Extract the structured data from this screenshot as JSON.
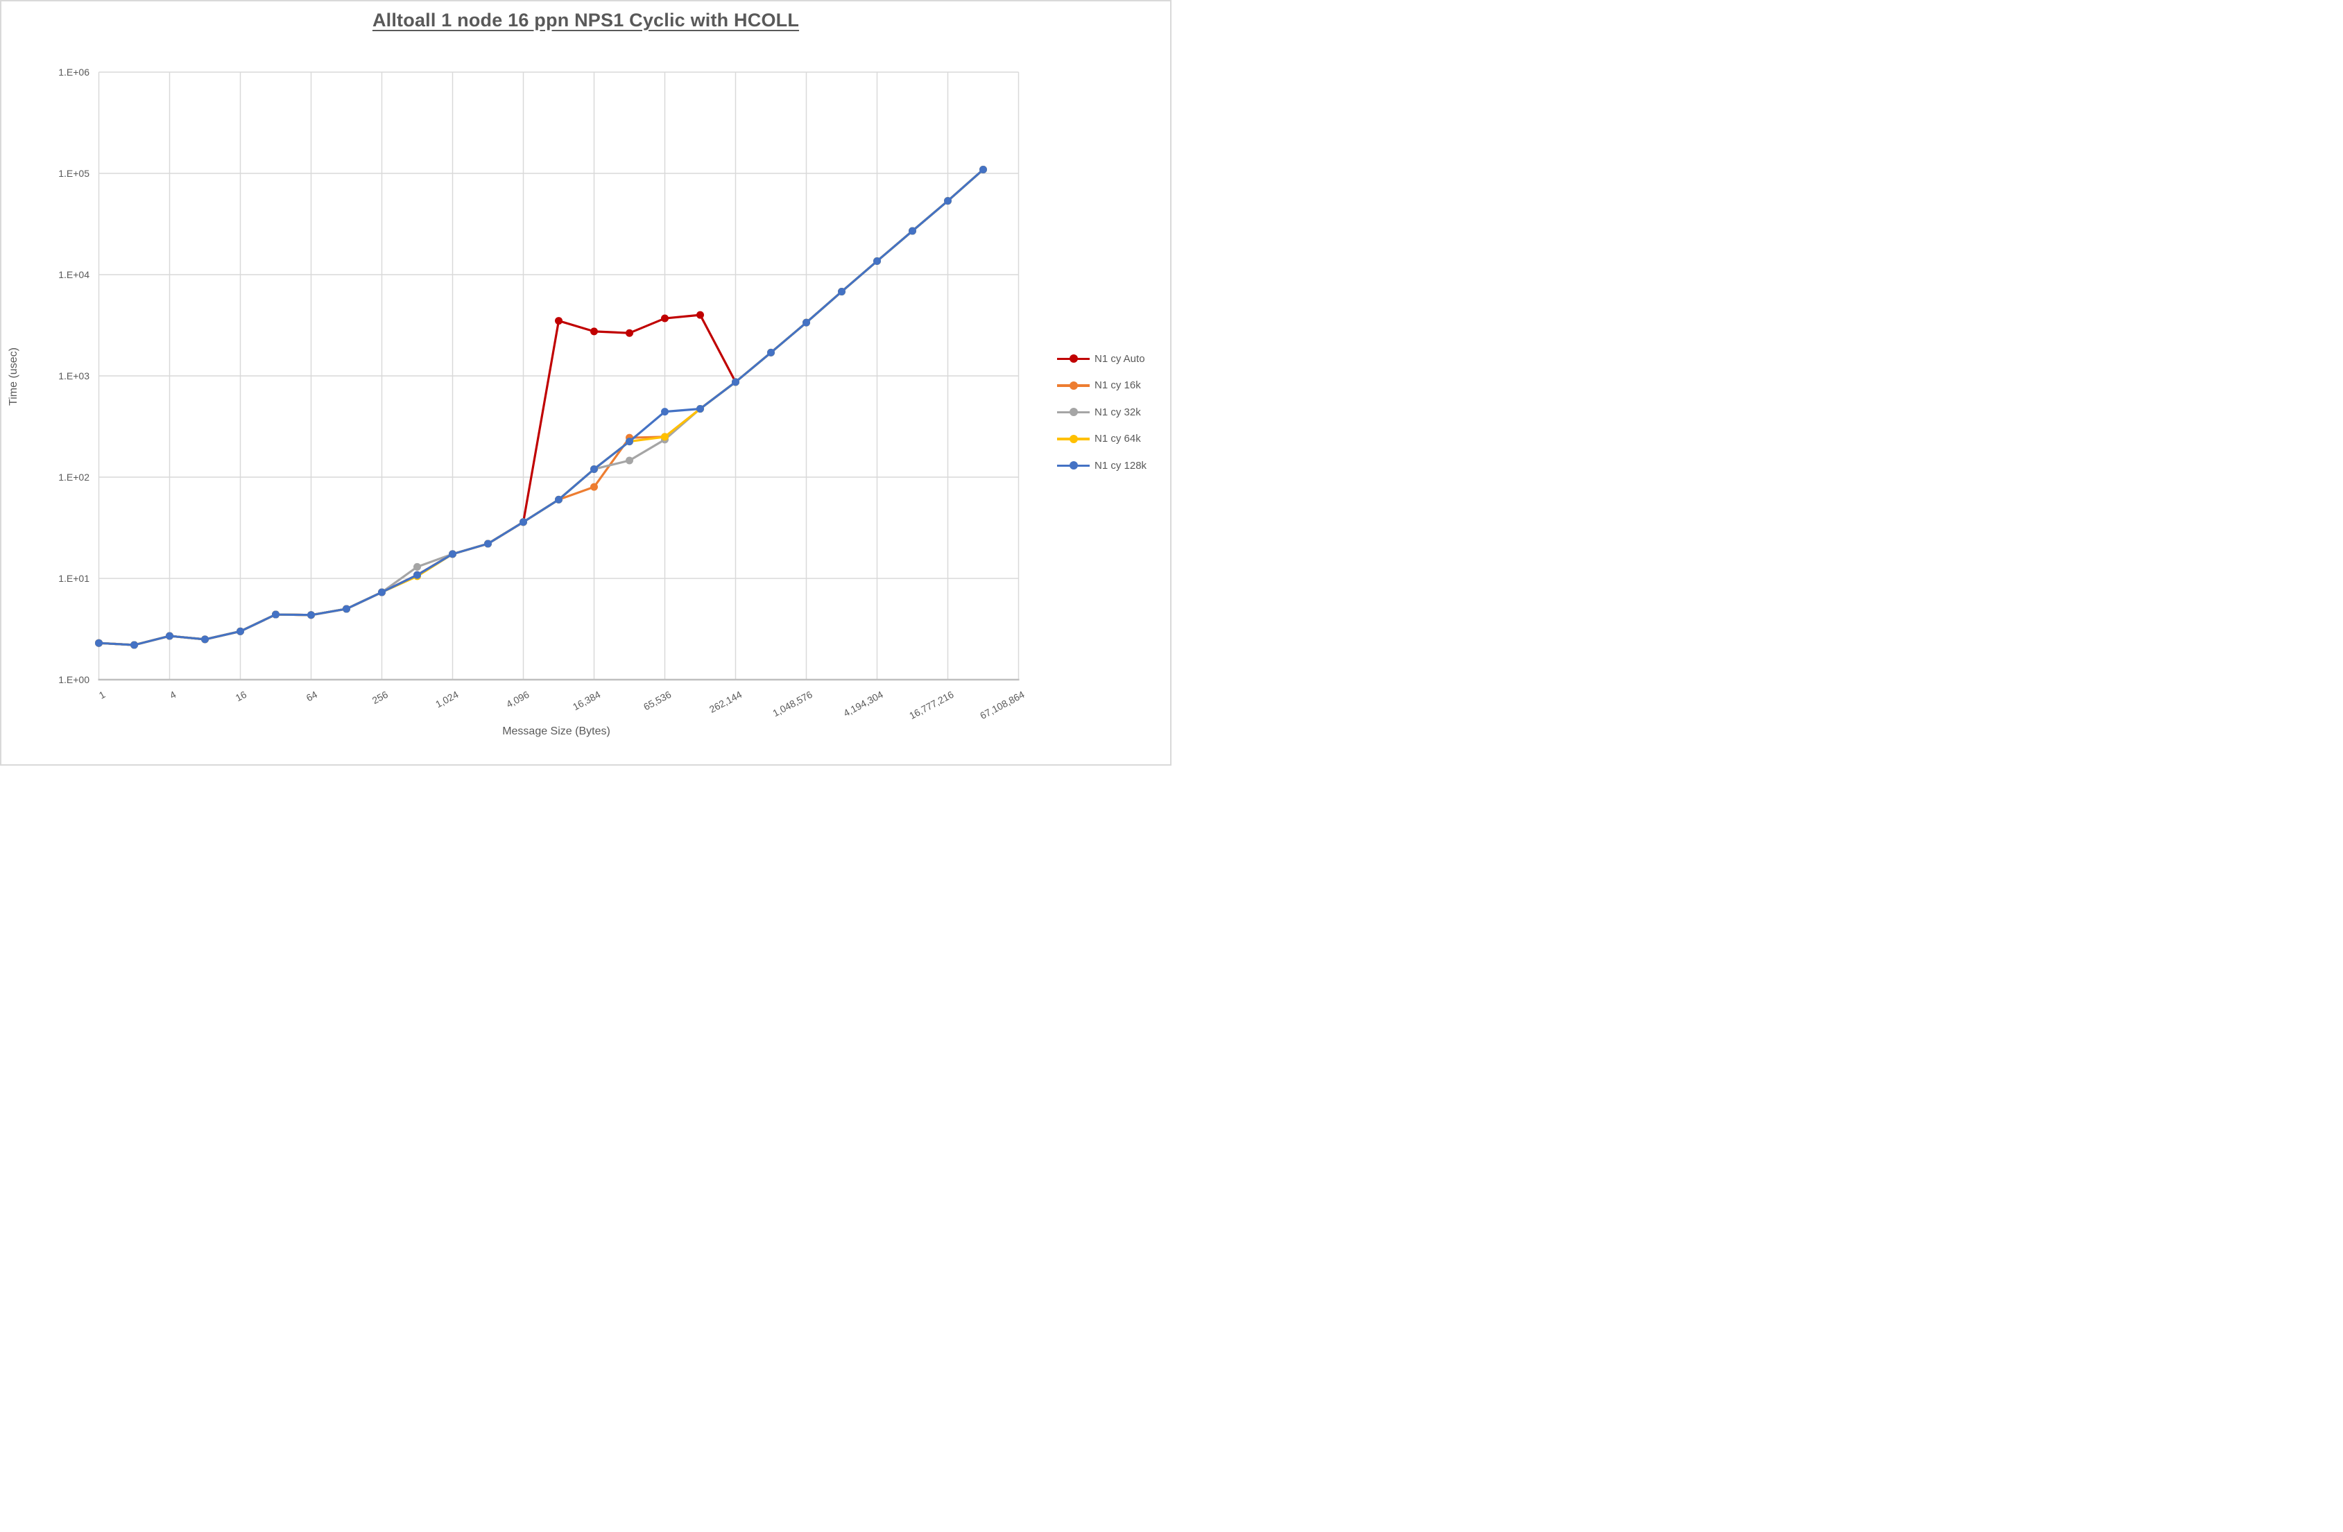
{
  "title": "Alltoall 1 node 16 ppn NPS1 Cyclic with HCOLL",
  "y_axis": {
    "title": "Time (usec)",
    "tick_labels": [
      "1.E+00",
      "1.E+01",
      "1.E+02",
      "1.E+03",
      "1.E+04",
      "1.E+05",
      "1.E+06"
    ]
  },
  "x_axis": {
    "title": "Message Size (Bytes)",
    "tick_labels": [
      "1",
      "4",
      "16",
      "64",
      "256",
      "1,024",
      "4,096",
      "16,384",
      "65,536",
      "262,144",
      "1,048,576",
      "4,194,304",
      "16,777,216",
      "67,108,864"
    ]
  },
  "colors": {
    "gridline": "#d9d9d9",
    "axis_line": "#bfbfbf",
    "text": "#595959",
    "series_auto": "#C00000",
    "series_16k": "#ED7D31",
    "series_32k": "#A5A5A5",
    "series_64k": "#FFC000",
    "series_128k": "#4472C4"
  },
  "chart_data": {
    "type": "line",
    "x_scale": "log2",
    "y_scale": "log10",
    "xlim": [
      1,
      67108864
    ],
    "ylim": [
      1,
      1000000
    ],
    "grid": true,
    "legend_position": "right",
    "title": "Alltoall 1 node 16 ppn NPS1 Cyclic with HCOLL",
    "xlabel": "Message Size (Bytes)",
    "ylabel": "Time (usec)",
    "x": [
      1,
      2,
      4,
      8,
      16,
      32,
      64,
      128,
      256,
      512,
      1024,
      2048,
      4096,
      8192,
      16384,
      32768,
      65536,
      131072,
      262144,
      524288,
      1048576,
      2097152,
      4194304,
      8388608,
      16777216,
      33554432
    ],
    "series": [
      {
        "name": "N1 cy Auto",
        "color": "#C00000",
        "values": [
          2.3,
          2.2,
          2.7,
          2.5,
          3.0,
          4.4,
          4.35,
          5.0,
          7.3,
          10.8,
          17.4,
          22.0,
          36,
          3500,
          2750,
          2650,
          3700,
          4000,
          870
        ]
      },
      {
        "name": "N1 cy 16k",
        "color": "#ED7D31",
        "values": [
          2.3,
          2.2,
          2.7,
          2.5,
          3.0,
          4.4,
          4.35,
          5.0,
          7.3,
          10.8,
          17.4,
          22.0,
          36,
          60,
          80,
          245,
          250,
          473,
          870,
          1700,
          3360,
          6800,
          13600,
          27000,
          53500,
          109000
        ]
      },
      {
        "name": "N1 cy 32k",
        "color": "#A5A5A5",
        "values": [
          2.3,
          2.2,
          2.7,
          2.5,
          3.0,
          4.4,
          4.35,
          5.0,
          7.3,
          13,
          17.4,
          22.0,
          36,
          60,
          120,
          146,
          235,
          473,
          870,
          1700,
          3360,
          6800,
          13600,
          27000,
          53500,
          109000
        ]
      },
      {
        "name": "N1 cy 64k",
        "color": "#FFC000",
        "values": [
          2.3,
          2.2,
          2.7,
          2.5,
          3.0,
          4.4,
          4.35,
          5.0,
          7.3,
          10.5,
          17.4,
          22.0,
          36,
          60,
          120,
          225,
          250,
          473,
          870,
          1700,
          3360,
          6800,
          13600,
          27000,
          53500,
          109000
        ]
      },
      {
        "name": "N1 cy 128k",
        "color": "#4472C4",
        "values": [
          2.3,
          2.2,
          2.7,
          2.5,
          3.0,
          4.4,
          4.35,
          5.0,
          7.3,
          10.8,
          17.4,
          22.0,
          36,
          60,
          120,
          225,
          443,
          473,
          870,
          1700,
          3360,
          6800,
          13600,
          27000,
          53500,
          109000
        ]
      }
    ]
  }
}
